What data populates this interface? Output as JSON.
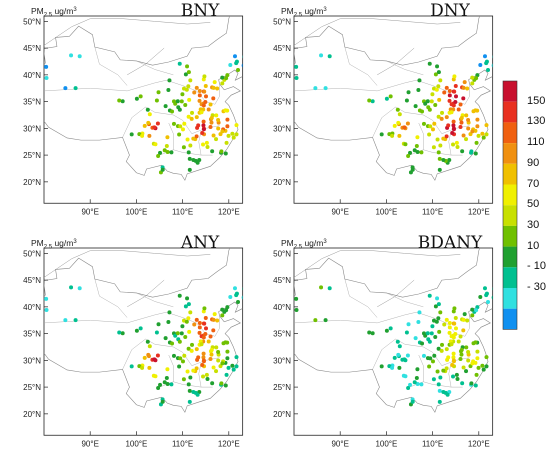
{
  "unit_prefix": "PM",
  "unit_sub": "2.5",
  "unit_suffix": " ug/m",
  "unit_sup": "3",
  "lat_labels": [
    "50°N",
    "45°N",
    "40°N",
    "35°N",
    "30°N",
    "25°N",
    "20°N"
  ],
  "lon_labels": [
    "90°E",
    "100°E",
    "110°E",
    "120°E"
  ],
  "panels": [
    {
      "title": "BNY"
    },
    {
      "title": "DNY"
    },
    {
      "title": "ANY"
    },
    {
      "title": "BDANY"
    }
  ],
  "colorbar": {
    "labels": [
      "150",
      "130",
      "110",
      "90",
      "70",
      "50",
      "30",
      "10",
      "- 10",
      "- 30"
    ],
    "colors": [
      "#c8102e",
      "#e83020",
      "#f06010",
      "#f09010",
      "#f0c000",
      "#f0f000",
      "#c8e000",
      "#70c000",
      "#20a030",
      "#00c090",
      "#30e0e0",
      "#1090f0"
    ]
  }
}
